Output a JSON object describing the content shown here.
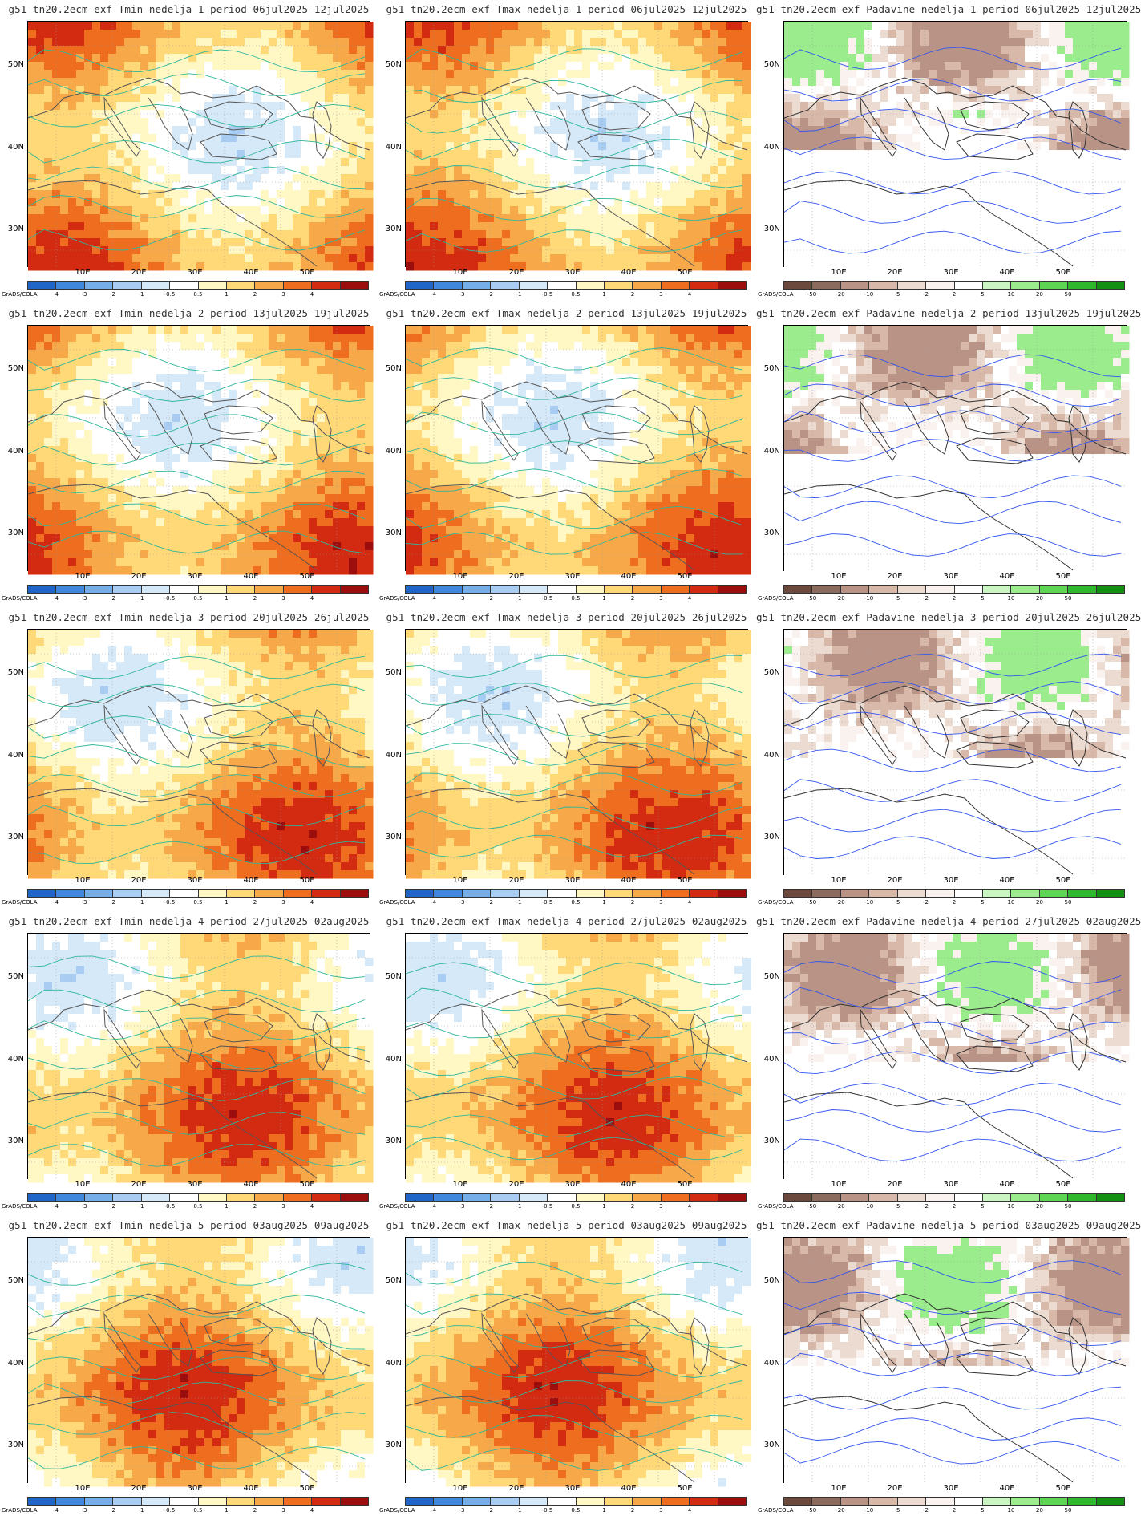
{
  "map_type": "weekly forecast anomaly maps (Tmin, Tmax, Padavine)",
  "y_axis_labels": [
    "50N",
    "40N",
    "30N"
  ],
  "x_axis_labels": [
    "10E",
    "20E",
    "30E",
    "40E",
    "50E"
  ],
  "credit": "GrADS/COLA",
  "temp_scale": {
    "labels": [
      "-4",
      "-3",
      "-2",
      "-1",
      "-0.5",
      "0.5",
      "1",
      "2",
      "3",
      "4"
    ],
    "colors": [
      "#1f66c8",
      "#3f88de",
      "#76aeea",
      "#a9cdf2",
      "#d6e9f8",
      "#ffffff",
      "#fff7c4",
      "#ffd877",
      "#f7a94a",
      "#ee6d1e",
      "#d32a12",
      "#9c0d0d"
    ]
  },
  "precip_scale": {
    "labels": [
      "-50",
      "-20",
      "-10",
      "-5",
      "-2",
      "2",
      "5",
      "10",
      "20",
      "50"
    ],
    "colors": [
      "#6b4a3d",
      "#8b6b5e",
      "#b89386",
      "#d8b8a9",
      "#ecdbd1",
      "#faf2ee",
      "#ffffff",
      "#ccf5c4",
      "#9aec8d",
      "#5fd653",
      "#2fb82b",
      "#138f12"
    ]
  },
  "panels": [
    {
      "title": "g51 tn20.2ecm-exf Tmin nedelja 1 period 06jul2025-12jul2025",
      "kind": "temp",
      "seed": 11
    },
    {
      "title": "g51 tn20.2ecm-exf Tmax nedelja 1 period 06jul2025-12jul2025",
      "kind": "temp",
      "seed": 12
    },
    {
      "title": "g51 tn20.2ecm-exf Padavine nedelja 1 period 06jul2025-12jul2025",
      "kind": "precip",
      "seed": 13
    },
    {
      "title": "g51 tn20.2ecm-exf Tmin nedelja 2 period 13jul2025-19jul2025",
      "kind": "temp",
      "seed": 21
    },
    {
      "title": "g51 tn20.2ecm-exf Tmax nedelja 2 period 13jul2025-19jul2025",
      "kind": "temp",
      "seed": 22
    },
    {
      "title": "g51 tn20.2ecm-exf Padavine nedelja 2 period 13jul2025-19jul2025",
      "kind": "precip",
      "seed": 23
    },
    {
      "title": "g51 tn20.2ecm-exf Tmin nedelja 3 period 20jul2025-26jul2025",
      "kind": "temp",
      "seed": 31
    },
    {
      "title": "g51 tn20.2ecm-exf Tmax nedelja 3 period 20jul2025-26jul2025",
      "kind": "temp",
      "seed": 32
    },
    {
      "title": "g51 tn20.2ecm-exf Padavine nedelja 3 period 20jul2025-26jul2025",
      "kind": "precip",
      "seed": 33
    },
    {
      "title": "g51 tn20.2ecm-exf Tmin nedelja 4 period 27jul2025-02aug2025",
      "kind": "temp",
      "seed": 41
    },
    {
      "title": "g51 tn20.2ecm-exf Tmax nedelja 4 period 27jul2025-02aug2025",
      "kind": "temp",
      "seed": 42
    },
    {
      "title": "g51 tn20.2ecm-exf Padavine nedelja 4 period 27jul2025-02aug2025",
      "kind": "precip",
      "seed": 43
    },
    {
      "title": "g51 tn20.2ecm-exf Tmin nedelja 5 period 03aug2025-09aug2025",
      "kind": "temp",
      "seed": 51
    },
    {
      "title": "g51 tn20.2ecm-exf Tmax nedelja 5 period 03aug2025-09aug2025",
      "kind": "temp",
      "seed": 52
    },
    {
      "title": "g51 tn20.2ecm-exf Padavine nedelja 5 period 03aug2025-09aug2025",
      "kind": "precip",
      "seed": 53
    }
  ]
}
